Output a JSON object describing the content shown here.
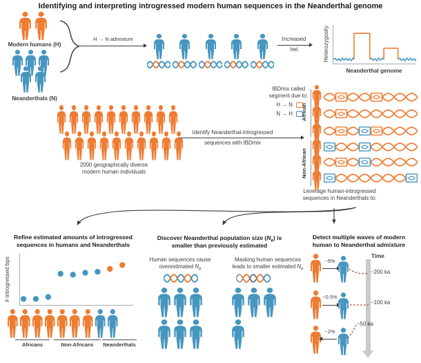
{
  "colors": {
    "human_orange": "#ee7c31",
    "neanderthal_blue": "#4796bf",
    "mask_gray": "#9b9da0",
    "mask_slate": "#5f7c8d",
    "red_dashed": "#b5483c",
    "axis_gray": "#a8aaad",
    "arrow_dark": "#3b3b3d",
    "time_bar_gray": "#c9cacc"
  },
  "title": "Identifying and interpreting introgressed modern human sequences in the Neanderthal genome",
  "top": {
    "modern_label": "Modern humans (H)",
    "neanderthal_label": "Neanderthals (N)",
    "modern_group": [
      "h",
      "h"
    ],
    "neanderthal_back": [
      "n",
      "n",
      "n"
    ],
    "neanderthal_front": [
      "n",
      "n"
    ],
    "admixture_label": "H → N admixture",
    "admixed_dna": [
      [
        "n",
        "h",
        "n",
        "n"
      ],
      [
        "n",
        "h",
        "n",
        "n"
      ],
      [
        "n",
        "h",
        "n",
        "n"
      ],
      [
        "n",
        "h",
        "n",
        "n"
      ],
      [
        "n",
        "h",
        "n",
        "n"
      ]
    ],
    "increased_line1": "Increased",
    "increased_line2": "het"
  },
  "cohort": {
    "rows": [
      [
        "h",
        "h",
        "h",
        "h",
        "h",
        "h",
        "h",
        "h",
        "h",
        "h"
      ],
      [
        "h",
        "h",
        "h",
        "h",
        "h",
        "h",
        "h",
        "h",
        "h",
        "h"
      ]
    ],
    "caption_line1": "2000 geographically diverse",
    "caption_line2": "modern human individuals"
  },
  "identify": {
    "line1": "Identify Neanderthal-introgressed",
    "line2": "sequences with IBDmix"
  },
  "ibdmix": {
    "legend_line1": "IBDmix called",
    "legend_line2": "segment due to:",
    "h_to_n_label": "H → N",
    "n_to_h_label": "N → H",
    "african_label": "African",
    "non_african_label": "Non-African",
    "rows": [
      {
        "group": "African",
        "person": "h",
        "boxes": [
          {
            "loop": 1,
            "c": "h"
          },
          {
            "loop": 4,
            "c": "h"
          }
        ]
      },
      {
        "group": "African",
        "person": "h",
        "boxes": [
          {
            "loop": 1,
            "c": "h"
          }
        ]
      },
      {
        "group": "African",
        "person": "h",
        "boxes": [
          {
            "loop": 1,
            "c": "h"
          },
          {
            "loop": 3,
            "c": "n"
          },
          {
            "loop": 4,
            "c": "h"
          }
        ]
      },
      {
        "group": "Non-African",
        "person": "h",
        "boxes": [
          {
            "loop": 0,
            "c": "n"
          },
          {
            "loop": 3,
            "c": "n"
          }
        ]
      },
      {
        "group": "Non-African",
        "person": "h",
        "boxes": [
          {
            "loop": 1,
            "c": "h"
          },
          {
            "loop": 3,
            "c": "n"
          }
        ]
      },
      {
        "group": "Non-African",
        "person": "h",
        "boxes": [
          {
            "loop": 0,
            "c": "n"
          },
          {
            "loop": 7,
            "c": "n"
          }
        ]
      }
    ]
  },
  "leverage": {
    "line1": "Leverage human-introgressed",
    "line2": "sequences in Neanderthals to:"
  },
  "panel_refine": {
    "title_line1": "Refine estimated amounts of introgressed",
    "title_line2": "sequences in humans and Neanderthals",
    "figures": [
      "h",
      "h",
      "h",
      "h",
      "h",
      "h",
      "h",
      "n",
      "n"
    ]
  },
  "panel_popsize": {
    "title_line1_pre": "Discover Neanderthal population size (",
    "N_sym": "N",
    "e_sym": "e",
    "title_line1_post": ") is",
    "title_line2": "smaller than previously estimated",
    "left_caption_line1": "Human sequences cause",
    "left_caption_line2_pre": "overestimated ",
    "right_caption_line1": "Masking human sequences",
    "right_caption_line2_pre": "leads to smaller estimated ",
    "dna_left": [
      "n",
      "h",
      "n",
      "h",
      "n"
    ],
    "dna_right": [
      "m",
      "h",
      "s",
      "h",
      "n"
    ],
    "left_rows": [
      [
        "n",
        "n",
        "n"
      ],
      [
        "n",
        "n",
        "n"
      ]
    ],
    "right_rows": [
      [
        "n",
        "n",
        "n"
      ],
      [
        "n"
      ]
    ]
  },
  "panel_waves": {
    "title_line1": "Detect multiple waves of modern",
    "title_line2": "human to Neanderthal admixture",
    "time_label": "Time",
    "rows": [
      {
        "pct": "~5%",
        "direction": "human-to-neanderthal",
        "ka": "~200 ka",
        "left": [
          "h"
        ],
        "right": [
          "n"
        ]
      },
      {
        "pct": "~0.5%",
        "direction": "human-to-neanderthal",
        "ka": "~100 ka",
        "left": [
          "h"
        ],
        "right": [
          "n"
        ]
      },
      {
        "pct": "~2%",
        "direction": "neanderthal-to-human",
        "ka": "~50 ka",
        "left": [
          "h"
        ],
        "right": [
          "n"
        ]
      }
    ]
  },
  "chart_data": [
    {
      "id": "heterozygosity-schematic",
      "type": "line",
      "ylabel": "Heterozygosity",
      "xlabel": "Neanderthal genome",
      "axis_ticks": "none shown",
      "series": [
        {
          "name": "Neanderthal genome baseline heterozygosity",
          "color": "#4796bf",
          "shape": "low noisy baseline"
        },
        {
          "name": "Introgressed human segments (increased het)",
          "color": "#ee7c31",
          "peaks": [
            {
              "x0": 0.25,
              "x1": 0.44,
              "height": 0.86
            },
            {
              "x0": 0.61,
              "x1": 0.78,
              "height": 0.37
            }
          ]
        }
      ]
    },
    {
      "id": "introgressed-bps-scatter",
      "type": "scatter",
      "ylabel": "# introgressed bps",
      "axis_ticks": "none shown",
      "groups": [
        {
          "name": "Africans",
          "dot_color": "#4796bf",
          "y_rel": [
            0.11,
            0.11,
            0.15
          ]
        },
        {
          "name": "Non-Africans",
          "dot_color": "#4796bf",
          "y_rel": [
            0.63,
            0.61,
            0.65,
            0.67
          ]
        },
        {
          "name": "Neanderthals",
          "dot_color": "#ee7c31",
          "y_rel": [
            0.73,
            0.81
          ]
        }
      ]
    }
  ]
}
